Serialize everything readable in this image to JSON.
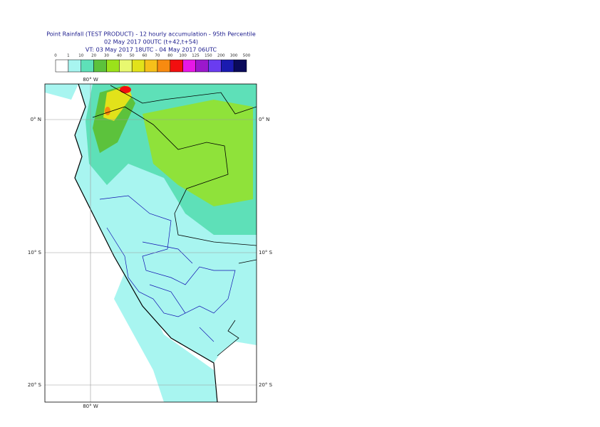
{
  "header": {
    "lines": [
      "Point Rainfall (TEST PRODUCT) - 12 hourly accumulation - 95th Percentile",
      "02 May 2017 00UTC (t+42,t+54)",
      "VT: 03 May 2017 18UTC - 04 May 2017 06UTC"
    ]
  },
  "legend": {
    "labels": [
      "0",
      "1",
      "10",
      "20",
      "30",
      "40",
      "50",
      "60",
      "70",
      "80",
      "100",
      "125",
      "150",
      "200",
      "300",
      "500"
    ],
    "colors": [
      "#ffffff",
      "#a8f5f0",
      "#5ee0b8",
      "#5cc23c",
      "#9be21a",
      "#e8f870",
      "#e2e21a",
      "#f6c01a",
      "#f88a10",
      "#f20f0f",
      "#e618e6",
      "#9b18cc",
      "#6a3cf0",
      "#1a1ab0",
      "#0a0a5a"
    ]
  },
  "map": {
    "lon_labels": [
      "80° W",
      "80° W"
    ],
    "lat_labels": [
      "0° N",
      "0° N",
      "10° S",
      "10° S",
      "20° S",
      "20° S"
    ]
  }
}
